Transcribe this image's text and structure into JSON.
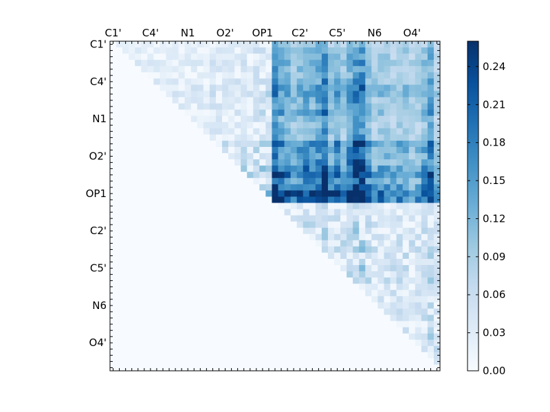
{
  "chart_data": {
    "type": "heatmap",
    "title": "",
    "xlabel": "",
    "ylabel": "",
    "n": 53,
    "tick_labels": [
      "C1'",
      "C4'",
      "N1",
      "O2'",
      "OP1",
      "C2'",
      "C5'",
      "N6",
      "O4'"
    ],
    "tick_indices": [
      0,
      6,
      12,
      18,
      24,
      30,
      36,
      42,
      48
    ],
    "colorbar": {
      "min": 0.0,
      "max": 0.26,
      "ticks": [
        "0.00",
        "0.03",
        "0.06",
        "0.09",
        "0.12",
        "0.15",
        "0.18",
        "0.21",
        "0.24"
      ],
      "colormap": "Blues",
      "colors": [
        "#f7fbff",
        "#deebf7",
        "#c6dbef",
        "#9ecae1",
        "#6baed6",
        "#4292c6",
        "#2171b5",
        "#08519c",
        "#08306b"
      ]
    },
    "values_note_upper_triangle_only": "matrix generated row-wise (i<j)",
    "row_profile": [
      0.02,
      0.03,
      0.03,
      0.04,
      0.03,
      0.03,
      0.04,
      0.05,
      0.05,
      0.04,
      0.04,
      0.05,
      0.03,
      0.03,
      0.03,
      0.03,
      0.07,
      0.06,
      0.05,
      0.06,
      0.08,
      0.09,
      0.07,
      0.09,
      0.12,
      0.11,
      0.0,
      0.0,
      0.03,
      0.03,
      0.04,
      0.03,
      0.05,
      0.04,
      0.04,
      0.03,
      0.04,
      0.03,
      0.04,
      0.02,
      0.03,
      0.02,
      0.03,
      0.03,
      0.04,
      0.03,
      0.03,
      0.04,
      0.04,
      0.05,
      0.02,
      0.02,
      0.0
    ],
    "col_profile": [
      0.0,
      0.02,
      0.02,
      0.01,
      0.02,
      0.02,
      0.02,
      0.02,
      0.02,
      0.02,
      0.02,
      0.02,
      0.02,
      0.02,
      0.02,
      0.02,
      0.04,
      0.04,
      0.03,
      0.03,
      0.04,
      0.05,
      0.03,
      0.06,
      0.07,
      0.07,
      0.16,
      0.14,
      0.12,
      0.11,
      0.12,
      0.13,
      0.12,
      0.14,
      0.17,
      0.11,
      0.13,
      0.1,
      0.14,
      0.17,
      0.18,
      0.12,
      0.09,
      0.1,
      0.1,
      0.09,
      0.1,
      0.1,
      0.08,
      0.09,
      0.11,
      0.14,
      0.08
    ]
  }
}
